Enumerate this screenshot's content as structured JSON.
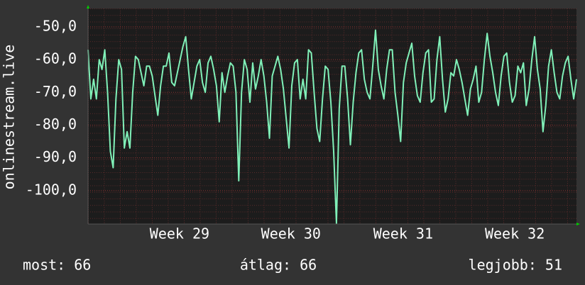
{
  "chart_data": {
    "type": "line",
    "y_label": "onlinestream.live",
    "color": "#80f0b8",
    "grid": true,
    "values": [
      -57,
      -72,
      -66,
      -72,
      -60,
      -63,
      -57,
      -70,
      -88,
      -93,
      -72,
      -60,
      -63,
      -87,
      -82,
      -87,
      -70,
      -59,
      -60,
      -64,
      -68,
      -62,
      -62,
      -65,
      -71,
      -77,
      -68,
      -62,
      -62,
      -58,
      -67,
      -68,
      -64,
      -60,
      -56,
      -53,
      -63,
      -72,
      -67,
      -62,
      -60,
      -67,
      -70,
      -61,
      -59,
      -63,
      -68,
      -79,
      -64,
      -70,
      -65,
      -61,
      -62,
      -70,
      -97,
      -70,
      -60,
      -63,
      -73,
      -61,
      -69,
      -65,
      -60,
      -65,
      -73,
      -84,
      -65,
      -62,
      -59,
      -63,
      -69,
      -78,
      -87,
      -68,
      -61,
      -60,
      -72,
      -66,
      -72,
      -57,
      -58,
      -70,
      -81,
      -85,
      -72,
      -62,
      -63,
      -73,
      -88,
      -110,
      -75,
      -62,
      -62,
      -72,
      -86,
      -73,
      -64,
      -58,
      -57,
      -66,
      -70,
      -72,
      -62,
      -51,
      -63,
      -68,
      -72,
      -63,
      -57,
      -57,
      -70,
      -77,
      -85,
      -67,
      -61,
      -58,
      -55,
      -65,
      -71,
      -73,
      -64,
      -58,
      -57,
      -73,
      -72,
      -60,
      -53,
      -66,
      -76,
      -72,
      -64,
      -65,
      -60,
      -63,
      -67,
      -72,
      -77,
      -69,
      -66,
      -62,
      -73,
      -70,
      -60,
      -52,
      -59,
      -64,
      -70,
      -74,
      -65,
      -59,
      -58,
      -67,
      -73,
      -71,
      -62,
      -64,
      -61,
      -74,
      -69,
      -60,
      -53,
      -63,
      -69,
      -82,
      -74,
      -62,
      -57,
      -64,
      -70,
      -72,
      -65,
      -61,
      -59,
      -66,
      -72,
      -66
    ],
    "xlim": [
      0,
      175
    ],
    "xticks": [
      {
        "value": 32.8,
        "label": "Week 29"
      },
      {
        "value": 72.7,
        "label": "Week 30"
      },
      {
        "value": 112.9,
        "label": "Week 31"
      },
      {
        "value": 152.9,
        "label": "Week 32"
      }
    ],
    "ylim": [
      -110.2,
      -44.4
    ],
    "yticks": [
      {
        "value": -100,
        "label": "-100,0"
      },
      {
        "value": -90,
        "label": "-90,0"
      },
      {
        "value": -80,
        "label": "-80,0"
      },
      {
        "value": -70,
        "label": "-70,0"
      },
      {
        "value": -60,
        "label": "-60,0"
      },
      {
        "value": -50,
        "label": "-50,0"
      }
    ]
  },
  "footer": {
    "current": "most: 66",
    "average": "átlag: 66",
    "best": "legjobb: 51"
  }
}
